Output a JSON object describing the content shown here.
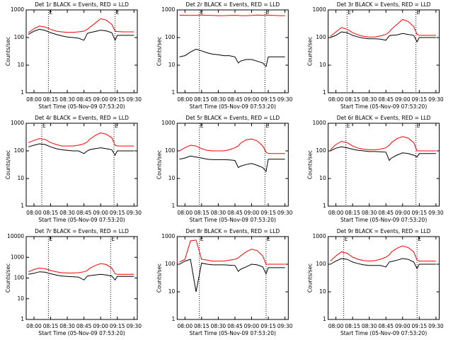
{
  "chart_data": [
    {
      "type": "line",
      "title": "Det 1r BLACK = Events, RED = LLD",
      "xlabel": "Start Time (05-Nov-09 07:53:20)",
      "ylabel": "Counts/sec",
      "log_y": true,
      "xlim": [
        "07:53",
        "09:33"
      ],
      "xticks": [
        "08:00",
        "08:15",
        "08:30",
        "08:45",
        "09:00",
        "09:15",
        "09:30"
      ],
      "ylim": [
        1,
        1000
      ],
      "yticks": [
        1,
        10,
        100,
        1000
      ],
      "markers": [
        {
          "label": "E",
          "x": "08:13"
        },
        {
          "label": "E",
          "x": "09:13"
        }
      ],
      "x": [
        "07:55",
        "08:00",
        "08:05",
        "08:10",
        "08:15",
        "08:20",
        "08:25",
        "08:30",
        "08:35",
        "08:40",
        "08:45",
        "08:48",
        "08:50",
        "08:55",
        "09:00",
        "09:05",
        "09:10",
        "09:13",
        "09:15",
        "09:20",
        "09:25",
        "09:30"
      ],
      "series": [
        {
          "color": "#ff0000",
          "values": [
            150,
            210,
            260,
            240,
            200,
            170,
            160,
            155,
            155,
            160,
            170,
            200,
            230,
            330,
            480,
            430,
            300,
            170,
            165,
            160,
            160,
            160
          ]
        },
        {
          "color": "#000000",
          "values": [
            130,
            170,
            200,
            180,
            150,
            130,
            115,
            105,
            100,
            95,
            80,
            140,
            150,
            165,
            185,
            175,
            150,
            80,
            120,
            120,
            120,
            120
          ]
        }
      ]
    },
    {
      "type": "line",
      "title": "Det 2r BLACK = Events, RED = LLD",
      "xlabel": "Start Time (05-Nov-09 07:53:20)",
      "ylabel": "Counts/sec",
      "log_y": true,
      "xlim": [
        "07:53",
        "09:33"
      ],
      "xticks": [
        "08:00",
        "08:15",
        "08:30",
        "08:45",
        "09:00",
        "09:15",
        "09:30"
      ],
      "ylim": [
        1,
        1000
      ],
      "yticks": [
        1,
        10,
        100,
        1000
      ],
      "markers": [
        {
          "label": "E",
          "x": "08:13"
        },
        {
          "label": "E",
          "x": "09:12"
        }
      ],
      "x": [
        "07:55",
        "08:00",
        "08:05",
        "08:10",
        "08:15",
        "08:20",
        "08:25",
        "08:30",
        "08:35",
        "08:40",
        "08:45",
        "08:48",
        "08:50",
        "08:55",
        "09:00",
        "09:05",
        "09:10",
        "09:13",
        "09:15",
        "09:20",
        "09:25",
        "09:30"
      ],
      "series": [
        {
          "color": "#ff0000",
          "values": [
            650,
            640,
            630,
            640,
            650,
            640,
            630,
            620,
            620,
            630,
            640,
            630,
            620,
            620,
            630,
            650,
            640,
            650,
            640,
            630,
            620,
            620
          ]
        },
        {
          "color": "#000000",
          "values": [
            20,
            22,
            30,
            38,
            33,
            28,
            25,
            24,
            22,
            22,
            20,
            12,
            14,
            16,
            16,
            14,
            12,
            9,
            20,
            20,
            20,
            20
          ]
        }
      ]
    },
    {
      "type": "line",
      "title": "Det 3r BLACK = Events, RED = LLD",
      "xlabel": "Start Time (05-Nov-09 07:53:20)",
      "ylabel": "Counts/sec",
      "log_y": true,
      "xlim": [
        "07:53",
        "09:33"
      ],
      "xticks": [
        "08:00",
        "08:15",
        "08:30",
        "08:45",
        "09:00",
        "09:15",
        "09:30"
      ],
      "ylim": [
        1,
        1000
      ],
      "yticks": [
        1,
        10,
        100,
        1000
      ],
      "markers": [
        {
          "label": "E",
          "x": "08:10"
        },
        {
          "label": "E",
          "x": "09:12"
        }
      ],
      "x": [
        "07:55",
        "08:00",
        "08:05",
        "08:10",
        "08:15",
        "08:20",
        "08:25",
        "08:30",
        "08:35",
        "08:40",
        "08:45",
        "08:48",
        "08:50",
        "08:55",
        "09:00",
        "09:05",
        "09:10",
        "09:13",
        "09:15",
        "09:20",
        "09:25",
        "09:30"
      ],
      "series": [
        {
          "color": "#ff0000",
          "values": [
            110,
            160,
            230,
            200,
            150,
            125,
            110,
            105,
            105,
            115,
            130,
            160,
            200,
            300,
            450,
            380,
            250,
            130,
            120,
            120,
            120,
            120
          ]
        },
        {
          "color": "#000000",
          "values": [
            100,
            120,
            160,
            150,
            120,
            105,
            95,
            90,
            90,
            88,
            80,
            115,
            120,
            125,
            140,
            130,
            120,
            70,
            100,
            100,
            100,
            100
          ]
        }
      ]
    },
    {
      "type": "line",
      "title": "Det 4r BLACK = Events, RED = LLD",
      "xlabel": "Start Time (05-Nov-09 07:53:20)",
      "ylabel": "Counts/sec",
      "log_y": true,
      "xlim": [
        "07:53",
        "09:33"
      ],
      "xticks": [
        "08:00",
        "08:15",
        "08:30",
        "08:45",
        "09:00",
        "09:15",
        "09:30"
      ],
      "ylim": [
        1,
        1000
      ],
      "yticks": [
        1,
        10,
        100,
        1000
      ],
      "markers": [
        {
          "label": "E",
          "x": "08:07"
        },
        {
          "label": "E",
          "x": "09:12"
        }
      ],
      "x": [
        "07:55",
        "08:00",
        "08:05",
        "08:10",
        "08:15",
        "08:20",
        "08:25",
        "08:30",
        "08:35",
        "08:40",
        "08:45",
        "08:48",
        "08:50",
        "08:55",
        "09:00",
        "09:05",
        "09:10",
        "09:13",
        "09:15",
        "09:20",
        "09:25",
        "09:30"
      ],
      "series": [
        {
          "color": "#ff0000",
          "values": [
            200,
            240,
            280,
            260,
            200,
            170,
            150,
            150,
            150,
            160,
            180,
            210,
            260,
            360,
            450,
            400,
            300,
            160,
            150,
            150,
            150,
            150
          ]
        },
        {
          "color": "#000000",
          "values": [
            140,
            160,
            180,
            170,
            140,
            120,
            110,
            105,
            100,
            100,
            80,
            100,
            110,
            120,
            130,
            120,
            110,
            70,
            100,
            100,
            100,
            100
          ]
        }
      ]
    },
    {
      "type": "line",
      "title": "Det 5r BLACK = Events, RED = LLD",
      "xlabel": "Start Time (05-Nov-09 07:53:20)",
      "ylabel": "Counts/sec",
      "log_y": true,
      "xlim": [
        "07:53",
        "09:33"
      ],
      "xticks": [
        "08:00",
        "08:15",
        "08:30",
        "08:45",
        "09:00",
        "09:15",
        "09:30"
      ],
      "ylim": [
        1,
        1000
      ],
      "yticks": [
        1,
        10,
        100,
        1000
      ],
      "markers": [
        {
          "label": "E",
          "x": "08:13"
        },
        {
          "label": "E",
          "x": "09:12"
        }
      ],
      "x": [
        "07:55",
        "08:00",
        "08:05",
        "08:10",
        "08:15",
        "08:20",
        "08:25",
        "08:30",
        "08:35",
        "08:40",
        "08:45",
        "08:48",
        "08:50",
        "08:55",
        "09:00",
        "09:05",
        "09:10",
        "09:13",
        "09:15",
        "09:20",
        "09:25",
        "09:30"
      ],
      "series": [
        {
          "color": "#ff0000",
          "values": [
            100,
            130,
            160,
            150,
            120,
            105,
            100,
            100,
            100,
            110,
            130,
            150,
            190,
            250,
            270,
            230,
            150,
            90,
            80,
            80,
            80,
            80
          ]
        },
        {
          "color": "#000000",
          "values": [
            50,
            55,
            65,
            60,
            55,
            50,
            48,
            48,
            48,
            47,
            45,
            25,
            28,
            32,
            35,
            30,
            25,
            18,
            50,
            50,
            50,
            50
          ]
        }
      ]
    },
    {
      "type": "line",
      "title": "Det 6r BLACK = Events, RED = LLD",
      "xlabel": "Start Time (05-Nov-09 07:53:20)",
      "ylabel": "Counts/sec",
      "log_y": true,
      "xlim": [
        "07:53",
        "09:33"
      ],
      "xticks": [
        "08:00",
        "08:15",
        "08:30",
        "08:45",
        "09:00",
        "09:15",
        "09:30"
      ],
      "ylim": [
        1,
        1000
      ],
      "yticks": [
        1,
        10,
        100,
        1000
      ],
      "markers": [
        {
          "label": "E",
          "x": "08:09"
        },
        {
          "label": "E",
          "x": "09:12"
        }
      ],
      "x": [
        "07:55",
        "08:00",
        "08:05",
        "08:10",
        "08:15",
        "08:20",
        "08:25",
        "08:30",
        "08:35",
        "08:40",
        "08:45",
        "08:48",
        "08:50",
        "08:55",
        "09:00",
        "09:05",
        "09:10",
        "09:13",
        "09:15",
        "09:20",
        "09:25",
        "09:30"
      ],
      "series": [
        {
          "color": "#ff0000",
          "values": [
            110,
            170,
            220,
            200,
            150,
            125,
            115,
            110,
            110,
            115,
            130,
            160,
            200,
            280,
            330,
            290,
            200,
            100,
            100,
            100,
            100,
            100
          ]
        },
        {
          "color": "#000000",
          "values": [
            100,
            125,
            140,
            130,
            115,
            105,
            100,
            95,
            95,
            93,
            90,
            45,
            55,
            70,
            85,
            80,
            70,
            60,
            80,
            80,
            80,
            80
          ]
        }
      ]
    },
    {
      "type": "line",
      "title": "Det 7r BLACK = Events, RED = LLD",
      "xlabel": "Start Time (05-Nov-09 07:53:20)",
      "ylabel": "Counts/sec",
      "log_y": true,
      "xlim": [
        "07:53",
        "09:33"
      ],
      "xticks": [
        "08:00",
        "08:15",
        "08:30",
        "08:45",
        "09:00",
        "09:15",
        "09:30"
      ],
      "ylim": [
        1,
        10000
      ],
      "yticks": [
        1,
        10,
        100,
        1000,
        10000
      ],
      "markers": [
        {
          "label": "E",
          "x": "08:13"
        },
        {
          "label": "E",
          "x": "09:09"
        }
      ],
      "x": [
        "07:55",
        "08:00",
        "08:05",
        "08:10",
        "08:15",
        "08:20",
        "08:25",
        "08:30",
        "08:35",
        "08:40",
        "08:45",
        "08:48",
        "08:50",
        "08:55",
        "09:00",
        "09:05",
        "09:10",
        "09:13",
        "09:15",
        "09:20",
        "09:25",
        "09:30"
      ],
      "series": [
        {
          "color": "#ff0000",
          "values": [
            200,
            260,
            300,
            280,
            230,
            200,
            180,
            175,
            175,
            180,
            200,
            230,
            290,
            400,
            500,
            450,
            300,
            160,
            150,
            150,
            150,
            150
          ]
        },
        {
          "color": "#000000",
          "values": [
            150,
            170,
            200,
            190,
            160,
            140,
            125,
            120,
            115,
            112,
            80,
            125,
            130,
            140,
            150,
            140,
            125,
            80,
            120,
            120,
            120,
            120
          ]
        }
      ]
    },
    {
      "type": "line",
      "title": "Det 8r BLACK = Events, RED = LLD",
      "xlabel": "Start Time (05-Nov-09 07:53:20)",
      "ylabel": "Counts/sec",
      "log_y": true,
      "xlim": [
        "07:53",
        "09:33"
      ],
      "xticks": [
        "08:00",
        "08:15",
        "08:30",
        "08:45",
        "09:00",
        "09:15",
        "09:30"
      ],
      "ylim": [
        1,
        1000
      ],
      "yticks": [
        1,
        10,
        100,
        1000
      ],
      "markers": [
        {
          "label": "E",
          "x": "08:13"
        },
        {
          "label": "E",
          "x": "09:13"
        }
      ],
      "x": [
        "07:55",
        "08:00",
        "08:05",
        "08:10",
        "08:15",
        "08:20",
        "08:25",
        "08:30",
        "08:35",
        "08:40",
        "08:45",
        "08:48",
        "08:50",
        "08:55",
        "09:00",
        "09:05",
        "09:10",
        "09:13",
        "09:15",
        "09:20",
        "09:25",
        "09:30"
      ],
      "series": [
        {
          "color": "#ff0000",
          "values": [
            120,
            150,
            700,
            750,
            150,
            140,
            130,
            130,
            130,
            140,
            150,
            170,
            200,
            280,
            350,
            310,
            200,
            100,
            100,
            100,
            100,
            100
          ]
        },
        {
          "color": "#000000",
          "values": [
            100,
            130,
            150,
            10,
            110,
            100,
            95,
            95,
            95,
            92,
            90,
            55,
            65,
            80,
            100,
            95,
            80,
            45,
            75,
            75,
            75,
            75
          ]
        }
      ]
    },
    {
      "type": "line",
      "title": "Det 9r BLACK = Events, RED = LLD",
      "xlabel": "Start Time (05-Nov-09 07:53:20)",
      "ylabel": "Counts/sec",
      "log_y": true,
      "xlim": [
        "07:53",
        "09:33"
      ],
      "xticks": [
        "08:00",
        "08:15",
        "08:30",
        "08:45",
        "09:00",
        "09:15",
        "09:30"
      ],
      "ylim": [
        1,
        1000
      ],
      "yticks": [
        1,
        10,
        100,
        1000
      ],
      "markers": [
        {
          "label": "E",
          "x": "08:07"
        },
        {
          "label": "E",
          "x": "09:13"
        }
      ],
      "x": [
        "07:55",
        "08:00",
        "08:05",
        "08:10",
        "08:15",
        "08:20",
        "08:25",
        "08:30",
        "08:35",
        "08:40",
        "08:45",
        "08:48",
        "08:50",
        "08:55",
        "09:00",
        "09:05",
        "09:10",
        "09:13",
        "09:15",
        "09:20",
        "09:25",
        "09:30"
      ],
      "series": [
        {
          "color": "#ff0000",
          "values": [
            130,
            200,
            280,
            250,
            180,
            150,
            135,
            130,
            135,
            150,
            180,
            220,
            280,
            380,
            460,
            400,
            280,
            140,
            130,
            130,
            130,
            130
          ]
        },
        {
          "color": "#000000",
          "values": [
            100,
            130,
            160,
            150,
            120,
            105,
            95,
            90,
            90,
            90,
            80,
            120,
            125,
            140,
            160,
            150,
            120,
            70,
            100,
            100,
            100,
            100
          ]
        }
      ]
    }
  ]
}
